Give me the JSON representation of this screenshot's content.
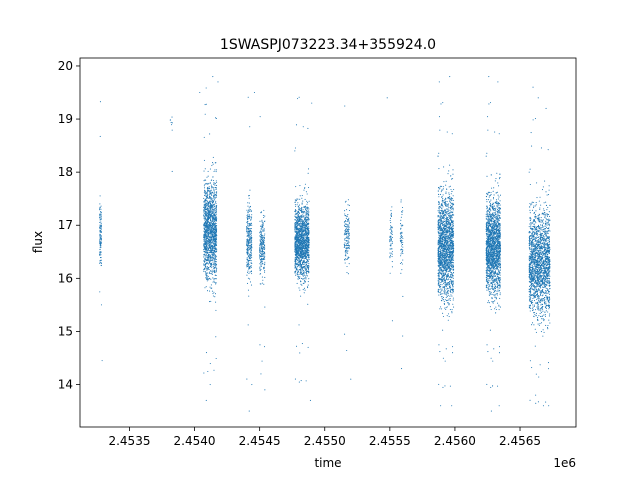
{
  "chart_data": {
    "type": "scatter",
    "title": "1SWASPJ073223.34+355924.0",
    "xlabel": "time",
    "ylabel": "flux",
    "x_offset_label": "1e6",
    "xlim": [
      2453120,
      2456930
    ],
    "ylim": [
      13.2,
      20.15
    ],
    "x_ticks": [
      2453500,
      2454000,
      2454500,
      2455000,
      2455500,
      2456000,
      2456500
    ],
    "x_tick_labels": [
      "2.4535",
      "2.4540",
      "2.4545",
      "2.4550",
      "2.4555",
      "2.4560",
      "2.4565"
    ],
    "y_ticks": [
      14,
      15,
      16,
      17,
      18,
      19,
      20
    ],
    "y_tick_labels": [
      "14",
      "15",
      "16",
      "17",
      "18",
      "19",
      "20"
    ],
    "grid": false,
    "marker_color": "#1f77b4",
    "observing_clusters": [
      {
        "x_start": 2453270,
        "x_end": 2453285,
        "y_center": 16.8,
        "y_spread": 0.6,
        "count": 120
      },
      {
        "x_start": 2453810,
        "x_end": 2453830,
        "y_center": 19.0,
        "y_spread": 0.3,
        "count": 8
      },
      {
        "x_start": 2454070,
        "x_end": 2454170,
        "y_center": 16.9,
        "y_spread": 0.9,
        "count": 1400
      },
      {
        "x_start": 2454400,
        "x_end": 2454440,
        "y_center": 16.7,
        "y_spread": 0.7,
        "count": 300
      },
      {
        "x_start": 2454500,
        "x_end": 2454540,
        "y_center": 16.6,
        "y_spread": 0.6,
        "count": 220
      },
      {
        "x_start": 2454770,
        "x_end": 2454880,
        "y_center": 16.7,
        "y_spread": 0.7,
        "count": 1500
      },
      {
        "x_start": 2455150,
        "x_end": 2455190,
        "y_center": 16.8,
        "y_spread": 0.6,
        "count": 150
      },
      {
        "x_start": 2455500,
        "x_end": 2455520,
        "y_center": 16.8,
        "y_spread": 0.6,
        "count": 60
      },
      {
        "x_start": 2455580,
        "x_end": 2455600,
        "y_center": 16.8,
        "y_spread": 0.6,
        "count": 60
      },
      {
        "x_start": 2455870,
        "x_end": 2455990,
        "y_center": 16.6,
        "y_spread": 1.0,
        "count": 1800
      },
      {
        "x_start": 2456240,
        "x_end": 2456350,
        "y_center": 16.6,
        "y_spread": 0.9,
        "count": 1800
      },
      {
        "x_start": 2456570,
        "x_end": 2456730,
        "y_center": 16.3,
        "y_spread": 1.0,
        "count": 2000
      }
    ],
    "outlier_points": [
      [
        2453290,
        14.45
      ],
      [
        2453285,
        15.5
      ],
      [
        2454040,
        19.5
      ],
      [
        2454090,
        13.7
      ],
      [
        2454120,
        14.0
      ],
      [
        2454140,
        19.8
      ],
      [
        2454180,
        19.7
      ],
      [
        2454420,
        13.5
      ],
      [
        2454440,
        14.0
      ],
      [
        2454460,
        19.5
      ],
      [
        2454510,
        14.2
      ],
      [
        2454540,
        13.9
      ],
      [
        2454890,
        13.7
      ],
      [
        2454900,
        19.3
      ],
      [
        2455200,
        14.1
      ],
      [
        2455480,
        19.4
      ],
      [
        2455520,
        15.2
      ],
      [
        2455590,
        14.3
      ],
      [
        2455880,
        19.7
      ],
      [
        2455890,
        13.6
      ],
      [
        2455960,
        19.8
      ],
      [
        2455975,
        13.6
      ],
      [
        2456260,
        19.8
      ],
      [
        2456280,
        13.5
      ],
      [
        2456330,
        19.7
      ],
      [
        2456600,
        19.6
      ],
      [
        2456640,
        19.4
      ],
      [
        2456680,
        13.6
      ],
      [
        2456720,
        13.6
      ],
      [
        2456700,
        19.2
      ],
      [
        2456620,
        13.8
      ],
      [
        2456340,
        13.6
      ]
    ]
  }
}
